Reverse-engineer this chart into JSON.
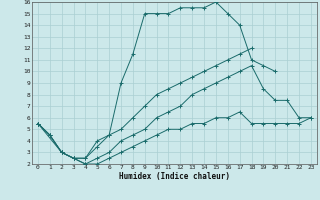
{
  "title": "",
  "xlabel": "Humidex (Indice chaleur)",
  "xlim": [
    -0.5,
    23.5
  ],
  "ylim": [
    2,
    16
  ],
  "xticks": [
    0,
    1,
    2,
    3,
    4,
    5,
    6,
    7,
    8,
    9,
    10,
    11,
    12,
    13,
    14,
    15,
    16,
    17,
    18,
    19,
    20,
    21,
    22,
    23
  ],
  "yticks": [
    2,
    3,
    4,
    5,
    6,
    7,
    8,
    9,
    10,
    11,
    12,
    13,
    14,
    15,
    16
  ],
  "background_color": "#cce8ea",
  "grid_color": "#aacfd2",
  "line_color": "#1a6b6b",
  "lines": [
    {
      "x": [
        0,
        1,
        2,
        3,
        4,
        5,
        6,
        7,
        8,
        9,
        10,
        11,
        12,
        13,
        14,
        15,
        16,
        17,
        18,
        19,
        20,
        21,
        22,
        23
      ],
      "y": [
        5.5,
        4.5,
        3,
        2.5,
        2,
        2.5,
        3,
        4,
        4.5,
        5,
        6,
        6.5,
        7,
        8,
        8.5,
        9,
        9.5,
        10,
        10.5,
        8.5,
        7.5,
        7.5,
        6,
        6
      ]
    },
    {
      "x": [
        0,
        1,
        2,
        3,
        4,
        5,
        6,
        7,
        8,
        9,
        10,
        11,
        12,
        13,
        14,
        15,
        16,
        17,
        18,
        19,
        20
      ],
      "y": [
        5.5,
        4.5,
        3,
        2.5,
        2.5,
        4,
        4.5,
        9,
        11.5,
        15,
        15,
        15,
        15.5,
        15.5,
        15.5,
        16,
        15,
        14,
        11,
        10.5,
        10
      ]
    },
    {
      "x": [
        0,
        1,
        2,
        3,
        4,
        5,
        6,
        7,
        8,
        9,
        10,
        11,
        12,
        13,
        14,
        15,
        16,
        17,
        18
      ],
      "y": [
        5.5,
        4.5,
        3,
        2.5,
        2.5,
        3.5,
        4.5,
        5,
        6,
        7,
        8,
        8.5,
        9,
        9.5,
        10,
        10.5,
        11,
        11.5,
        12
      ]
    },
    {
      "x": [
        0,
        2,
        3,
        4,
        5,
        6,
        7,
        8,
        9,
        10,
        11,
        12,
        13,
        14,
        15,
        16,
        17,
        18,
        19,
        20,
        21,
        22,
        23
      ],
      "y": [
        5.5,
        3,
        2.5,
        2,
        2,
        2.5,
        3,
        3.5,
        4,
        4.5,
        5,
        5,
        5.5,
        5.5,
        6,
        6,
        6.5,
        5.5,
        5.5,
        5.5,
        5.5,
        5.5,
        6
      ]
    }
  ]
}
